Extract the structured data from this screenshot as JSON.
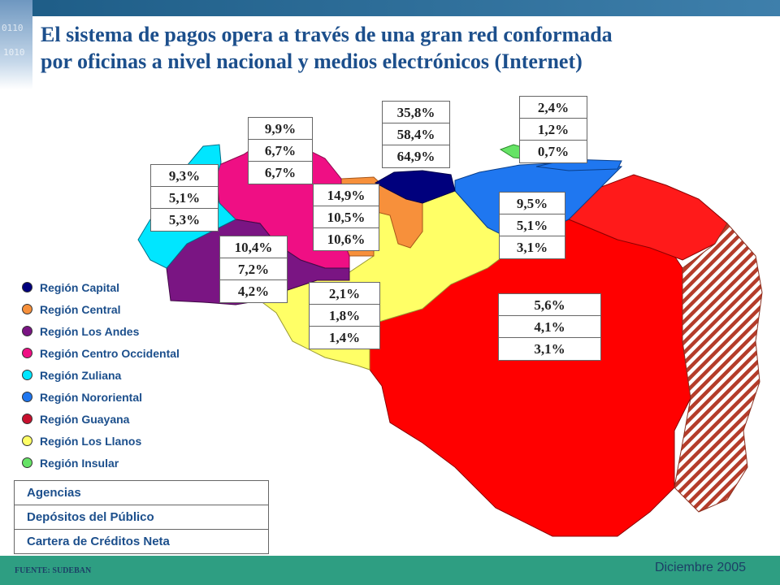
{
  "title": {
    "line1": "El sistema de pagos opera a través de una gran red conformada",
    "line2": "por oficinas a nivel nacional y medios electrónicos (Internet)"
  },
  "regions": [
    {
      "id": "capital",
      "label": "Región Capital",
      "color": "#00007d",
      "values": [
        "35,8%",
        "58,4%",
        "64,9%"
      ]
    },
    {
      "id": "central",
      "label": "Región Central",
      "color": "#f7903b",
      "values": [
        "14,9%",
        "10,5%",
        "10,6%"
      ]
    },
    {
      "id": "andes",
      "label": "Región Los Andes",
      "color": "#7a1583",
      "values": [
        "10,4%",
        "7,2%",
        "4,2%"
      ]
    },
    {
      "id": "centro-occidental",
      "label": "Región Centro Occidental",
      "color": "#ef0f84",
      "values": [
        "9,9%",
        "6,7%",
        "6,7%"
      ]
    },
    {
      "id": "zuliana",
      "label": "Región Zuliana",
      "color": "#00e6ff",
      "values": [
        "9,3%",
        "5,1%",
        "5,3%"
      ]
    },
    {
      "id": "nororiental",
      "label": "Región Nororiental",
      "color": "#1f77f0",
      "values": [
        "9,5%",
        "5,1%",
        "3,1%"
      ]
    },
    {
      "id": "guayana",
      "label": "Región Guayana",
      "color": "#c8102e",
      "values": [
        "5,6%",
        "4,1%",
        "3,1%"
      ]
    },
    {
      "id": "llanos",
      "label": "Región Los Llanos",
      "color": "#ffff66",
      "values": [
        "2,1%",
        "1,8%",
        "1,4%"
      ]
    },
    {
      "id": "insular",
      "label": "Región Insular",
      "color": "#66e366",
      "values": [
        "2,4%",
        "1,2%",
        "0,7%"
      ]
    }
  ],
  "key": [
    "Agencias",
    "Depósitos del Público",
    "Cartera de Créditos Neta"
  ],
  "footer": {
    "source": "FUENTE: SUDEBAN",
    "date": "Diciembre 2005"
  },
  "colors": {
    "guayana_fill": "#ff0000",
    "territory_hatch": "#b43c2a",
    "title": "#1c4f8c",
    "footer_bar": "#2e9e82",
    "top_bar": "#1d5c86"
  }
}
